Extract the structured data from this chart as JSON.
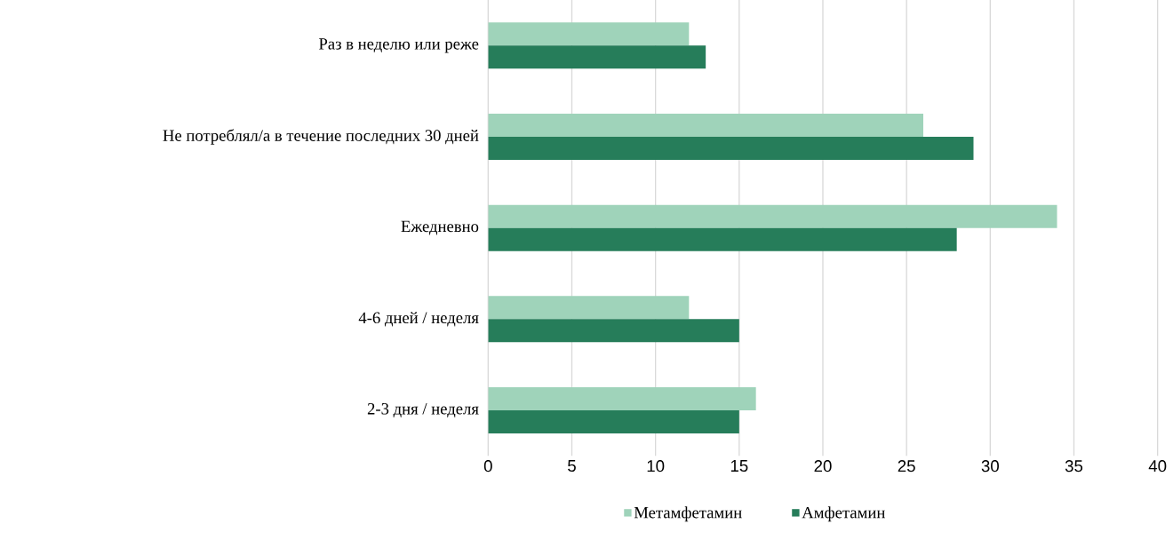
{
  "chart_data": {
    "type": "bar",
    "orientation": "horizontal",
    "categories": [
      "Раз в неделю или реже",
      "Не потреблял/а в течение последних 30 дней",
      "Ежедневно",
      "4-6 дней / неделя",
      "2-3 дня / неделя"
    ],
    "series": [
      {
        "name": "Метамфетамин",
        "color": "#9fd3ba",
        "values": [
          12,
          26,
          34,
          12,
          16
        ]
      },
      {
        "name": "Амфетамин",
        "color": "#267d5a",
        "values": [
          13,
          29,
          28,
          15,
          15
        ]
      }
    ],
    "xlim": [
      0,
      40
    ],
    "xticks": [
      0,
      5,
      10,
      15,
      20,
      25,
      30,
      35,
      40
    ],
    "grid": "x",
    "legend": "bottom"
  }
}
